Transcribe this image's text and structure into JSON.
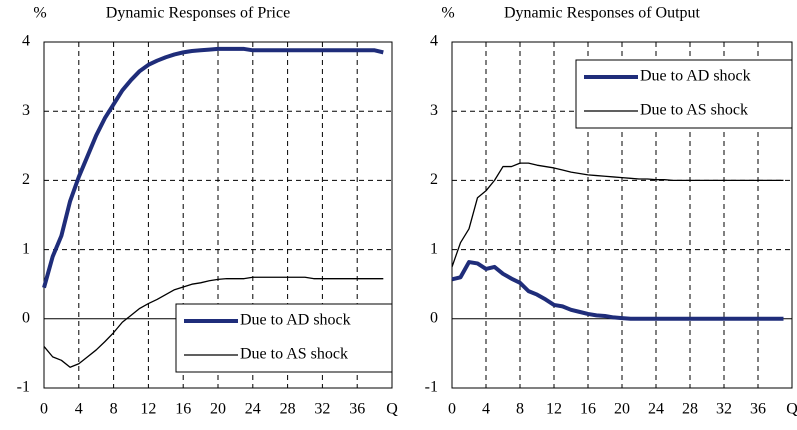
{
  "chart_data": [
    {
      "type": "line",
      "title": "Dynamic Responses of Price",
      "y_label": "%",
      "x": [
        0,
        1,
        2,
        3,
        4,
        5,
        6,
        7,
        8,
        9,
        10,
        11,
        12,
        13,
        14,
        15,
        16,
        17,
        18,
        19,
        20,
        21,
        22,
        23,
        24,
        25,
        26,
        27,
        28,
        29,
        30,
        31,
        32,
        33,
        34,
        35,
        36,
        37,
        38,
        39
      ],
      "series": [
        {
          "name": "Due to AD shock",
          "color": "#1f2d7a",
          "values": [
            0.45,
            0.9,
            1.2,
            1.7,
            2.05,
            2.35,
            2.65,
            2.9,
            3.1,
            3.3,
            3.45,
            3.58,
            3.67,
            3.73,
            3.78,
            3.82,
            3.85,
            3.87,
            3.88,
            3.89,
            3.9,
            3.9,
            3.9,
            3.9,
            3.88,
            3.88,
            3.88,
            3.88,
            3.88,
            3.88,
            3.88,
            3.88,
            3.88,
            3.88,
            3.88,
            3.88,
            3.88,
            3.88,
            3.88,
            3.85
          ]
        },
        {
          "name": "Due to AS shock",
          "color": "#000000",
          "values": [
            -0.4,
            -0.55,
            -0.6,
            -0.7,
            -0.65,
            -0.55,
            -0.45,
            -0.33,
            -0.2,
            -0.05,
            0.05,
            0.15,
            0.22,
            0.28,
            0.35,
            0.42,
            0.46,
            0.5,
            0.52,
            0.55,
            0.57,
            0.58,
            0.58,
            0.58,
            0.6,
            0.6,
            0.6,
            0.6,
            0.6,
            0.6,
            0.6,
            0.58,
            0.58,
            0.58,
            0.58,
            0.58,
            0.58,
            0.58,
            0.58,
            0.58
          ]
        }
      ],
      "xlim": [
        0,
        40
      ],
      "xticks": [
        0,
        4,
        8,
        12,
        16,
        20,
        24,
        28,
        32,
        36,
        {
          "value": 40,
          "label": "Q"
        }
      ],
      "ylim": [
        -1,
        4
      ],
      "yticks": [
        -1,
        0,
        1,
        2,
        3,
        4
      ],
      "grid": true,
      "legend": "lower right"
    },
    {
      "type": "line",
      "title": "Dynamic Responses of Output",
      "y_label": "%",
      "x": [
        0,
        1,
        2,
        3,
        4,
        5,
        6,
        7,
        8,
        9,
        10,
        11,
        12,
        13,
        14,
        15,
        16,
        17,
        18,
        19,
        20,
        21,
        22,
        23,
        24,
        25,
        26,
        27,
        28,
        29,
        30,
        31,
        32,
        33,
        34,
        35,
        36,
        37,
        38,
        39
      ],
      "series": [
        {
          "name": "Due to AD shock",
          "color": "#1f2d7a",
          "values": [
            0.57,
            0.6,
            0.82,
            0.8,
            0.72,
            0.75,
            0.65,
            0.58,
            0.52,
            0.4,
            0.35,
            0.28,
            0.2,
            0.18,
            0.13,
            0.1,
            0.07,
            0.05,
            0.04,
            0.02,
            0.01,
            0,
            0,
            0,
            0,
            0,
            0,
            0,
            0,
            0,
            0,
            0,
            0,
            0,
            0,
            0,
            0,
            0,
            0,
            0
          ]
        },
        {
          "name": "Due to AS shock",
          "color": "#000000",
          "values": [
            0.75,
            1.1,
            1.3,
            1.75,
            1.85,
            2.0,
            2.2,
            2.2,
            2.25,
            2.25,
            2.22,
            2.2,
            2.18,
            2.15,
            2.12,
            2.1,
            2.08,
            2.07,
            2.06,
            2.05,
            2.04,
            2.03,
            2.02,
            2.02,
            2.01,
            2.01,
            2.0,
            2.0,
            2.0,
            2.0,
            2.0,
            2.0,
            2.0,
            2.0,
            2.0,
            2.0,
            2.0,
            2.0,
            2.0,
            2.0
          ]
        }
      ],
      "xlim": [
        0,
        40
      ],
      "xticks": [
        0,
        4,
        8,
        12,
        16,
        20,
        24,
        28,
        32,
        36,
        {
          "value": 40,
          "label": "Q"
        }
      ],
      "ylim": [
        -1,
        4
      ],
      "yticks": [
        -1,
        0,
        1,
        2,
        3,
        4
      ],
      "grid": true,
      "legend": "upper right"
    }
  ]
}
